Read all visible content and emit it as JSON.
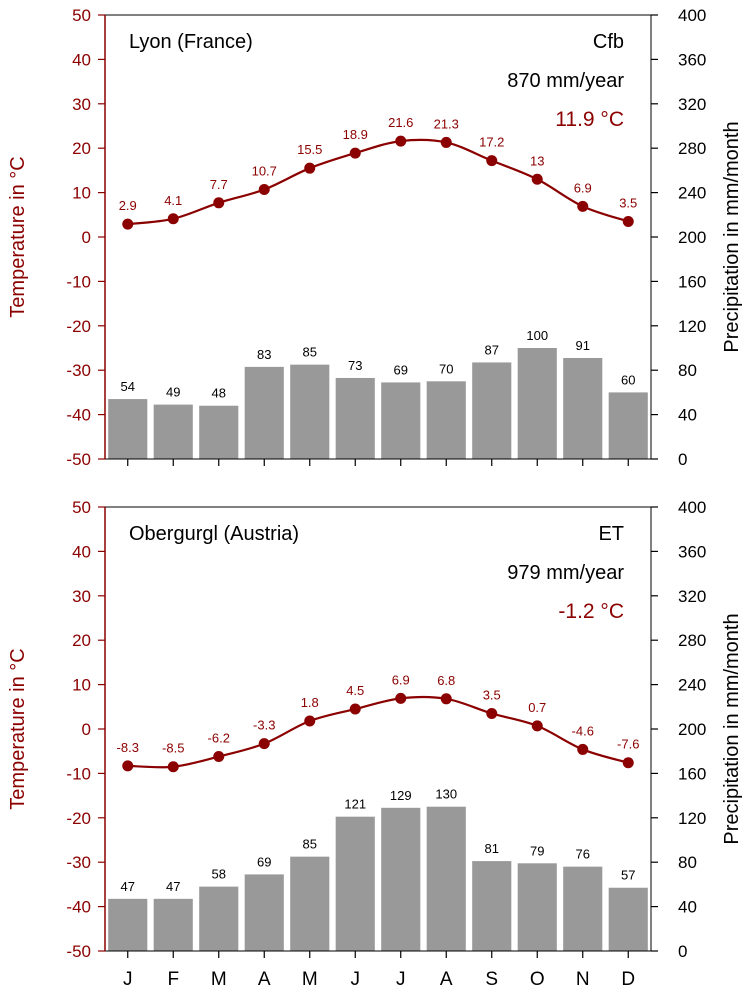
{
  "months": [
    "J",
    "F",
    "M",
    "A",
    "M",
    "J",
    "J",
    "A",
    "S",
    "O",
    "N",
    "D"
  ],
  "colors": {
    "temperature": "#8b0000",
    "bars": "#999999",
    "frame": "#000000"
  },
  "chart_data": [
    {
      "type": "bar",
      "title": "Lyon (France)",
      "climate_class": "Cfb",
      "annual_precipitation": "870 mm/year",
      "annual_temperature": "11.9 °C",
      "ylabel_left": "Temperature in °C",
      "ylabel_right": "Precipitation in mm/month",
      "left_ticks": [
        "50",
        "40",
        "30",
        "20",
        "10",
        "0",
        "-10",
        "-20",
        "-30",
        "-40",
        "-50"
      ],
      "right_ticks": [
        "400",
        "360",
        "320",
        "280",
        "240",
        "200",
        "160",
        "120",
        "80",
        "40",
        "0"
      ],
      "temp_range": [
        -50,
        50
      ],
      "precip_range": [
        0,
        400
      ],
      "categories": [
        "J",
        "F",
        "M",
        "A",
        "M",
        "J",
        "J",
        "A",
        "S",
        "O",
        "N",
        "D"
      ],
      "series": [
        {
          "name": "Temperature",
          "type": "line",
          "values": [
            2.9,
            4.1,
            7.7,
            10.7,
            15.5,
            18.9,
            21.6,
            21.3,
            17.2,
            13,
            6.9,
            3.5
          ],
          "labels": [
            "2.9",
            "4.1",
            "7.7",
            "10.7",
            "15.5",
            "18.9",
            "21.6",
            "21.3",
            "17.2",
            "13",
            "6.9",
            "3.5"
          ]
        },
        {
          "name": "Precipitation",
          "type": "bar",
          "values": [
            54,
            49,
            48,
            83,
            85,
            73,
            69,
            70,
            87,
            100,
            91,
            60
          ],
          "labels": [
            "54",
            "49",
            "48",
            "83",
            "85",
            "73",
            "69",
            "70",
            "87",
            "100",
            "91",
            "60"
          ]
        }
      ]
    },
    {
      "type": "bar",
      "title": "Obergurgl (Austria)",
      "climate_class": "ET",
      "annual_precipitation": "979 mm/year",
      "annual_temperature": "-1.2 °C",
      "ylabel_left": "Temperature in °C",
      "ylabel_right": "Precipitation in mm/month",
      "left_ticks": [
        "50",
        "40",
        "30",
        "20",
        "10",
        "0",
        "-10",
        "-20",
        "-30",
        "-40",
        "-50"
      ],
      "right_ticks": [
        "400",
        "360",
        "320",
        "280",
        "240",
        "200",
        "160",
        "120",
        "80",
        "40",
        "0"
      ],
      "temp_range": [
        -50,
        50
      ],
      "precip_range": [
        0,
        400
      ],
      "categories": [
        "J",
        "F",
        "M",
        "A",
        "M",
        "J",
        "J",
        "A",
        "S",
        "O",
        "N",
        "D"
      ],
      "series": [
        {
          "name": "Temperature",
          "type": "line",
          "values": [
            -8.3,
            -8.5,
            -6.2,
            -3.3,
            1.8,
            4.5,
            6.9,
            6.8,
            3.5,
            0.7,
            -4.6,
            -7.6
          ],
          "labels": [
            "-8.3",
            "-8.5",
            "-6.2",
            "-3.3",
            "1.8",
            "4.5",
            "6.9",
            "6.8",
            "3.5",
            "0.7",
            "-4.6",
            "-7.6"
          ]
        },
        {
          "name": "Precipitation",
          "type": "bar",
          "values": [
            47,
            47,
            58,
            69,
            85,
            121,
            129,
            130,
            81,
            79,
            76,
            57
          ],
          "labels": [
            "47",
            "47",
            "58",
            "69",
            "85",
            "121",
            "129",
            "130",
            "81",
            "79",
            "76",
            "57"
          ]
        }
      ]
    }
  ]
}
